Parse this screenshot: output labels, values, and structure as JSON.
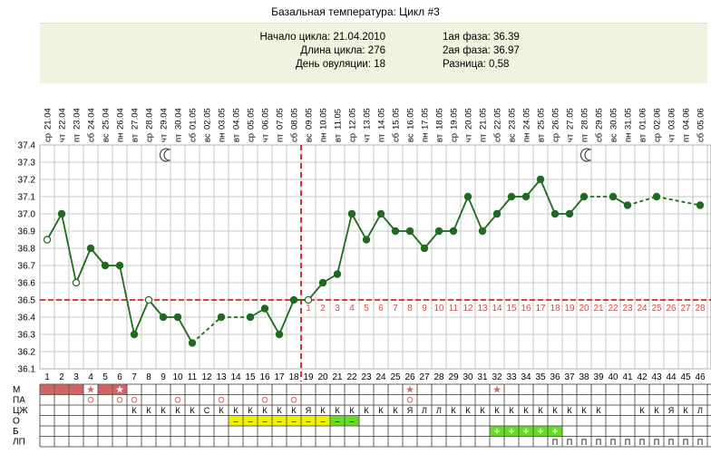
{
  "title": "Базальная температура: Цикл #3",
  "info": {
    "start": "Начало цикла: 21.04.2010",
    "length": "Длина цикла: 276",
    "ovulation": "День овуляции: 18",
    "phase1": "1ая фаза: 36.39",
    "phase2": "2ая фаза: 36.97",
    "diff": "Разница: 0,58"
  },
  "colors": {
    "line": "#1e6b1e",
    "grid": "#b8b8b8",
    "coverline": "#cc0000",
    "row_red": "#d46464",
    "row_yellow": "#f0f000",
    "row_green": "#66dd22",
    "phase2_numbers": "#d24a4a"
  },
  "chart_data": {
    "type": "line",
    "ylim": [
      36.1,
      37.4
    ],
    "yticks": [
      "36.1",
      "36.2",
      "36.3",
      "36.4",
      "36.5",
      "36.6",
      "36.7",
      "36.8",
      "36.9",
      "37.0",
      "37.1",
      "37.2",
      "37.3",
      "37.4"
    ],
    "days": [
      1,
      2,
      3,
      4,
      5,
      6,
      7,
      8,
      9,
      10,
      11,
      12,
      13,
      14,
      15,
      16,
      17,
      18,
      19,
      20,
      21,
      22,
      23,
      24,
      25,
      26,
      27,
      28,
      29,
      30,
      31,
      32,
      33,
      34,
      35,
      36,
      37,
      38,
      39,
      40,
      41,
      42,
      43,
      44,
      45,
      46
    ],
    "dates": [
      "21.04",
      "22.04",
      "23.04",
      "24.04",
      "25.04",
      "26.04",
      "27.04",
      "28.04",
      "29.04",
      "30.04",
      "01.05",
      "02.05",
      "03.05",
      "04.05",
      "05.05",
      "06.05",
      "07.05",
      "08.05",
      "09.05",
      "10.05",
      "11.05",
      "12.05",
      "13.05",
      "14.05",
      "15.05",
      "16.05",
      "17.05",
      "18.05",
      "19.05",
      "20.05",
      "21.05",
      "22.05",
      "23.05",
      "24.05",
      "25.05",
      "26.05",
      "27.05",
      "28.05",
      "29.05",
      "30.05",
      "31.05",
      "01.06",
      "02.06",
      "03.06",
      "04.06",
      "05.06"
    ],
    "weekdays": [
      "ср",
      "чт",
      "пт",
      "сб",
      "вс",
      "пн",
      "вт",
      "ср",
      "чт",
      "пт",
      "сб",
      "вс",
      "пн",
      "вт",
      "ср",
      "чт",
      "пт",
      "сб",
      "вс",
      "пн",
      "вт",
      "ср",
      "чт",
      "пт",
      "сб",
      "вс",
      "пн",
      "вт",
      "ср",
      "чт",
      "пт",
      "сб",
      "вс",
      "пн",
      "вт",
      "ср",
      "чт",
      "пт",
      "сб",
      "вс",
      "пн",
      "вт",
      "ср",
      "чт",
      "пт",
      "сб"
    ],
    "temps": [
      36.85,
      37.0,
      36.6,
      36.8,
      36.7,
      36.7,
      36.3,
      36.5,
      36.4,
      36.4,
      36.25,
      null,
      36.4,
      null,
      36.4,
      36.45,
      36.3,
      36.5,
      36.5,
      36.6,
      36.65,
      37.0,
      36.85,
      37.0,
      36.9,
      36.9,
      36.8,
      36.9,
      36.9,
      37.1,
      36.9,
      37.0,
      37.1,
      37.1,
      37.2,
      37.0,
      37.0,
      37.1,
      null,
      37.1,
      37.05,
      null,
      37.1,
      null,
      null,
      37.05
    ],
    "hollow_days": [
      1,
      3,
      8,
      19
    ],
    "dashed_segments": [
      [
        11,
        13
      ],
      [
        38,
        40
      ],
      [
        42,
        46
      ]
    ],
    "coverline": 36.5,
    "ovulation_day": 18,
    "phase2_labels": [
      "1",
      "2",
      "3",
      "4",
      "5",
      "6",
      "7",
      "8",
      "9",
      "10",
      "11",
      "12",
      "13",
      "14",
      "15",
      "16",
      "17",
      "18",
      "19",
      "20",
      "21",
      "22",
      "23",
      "24",
      "25",
      "26",
      "27",
      "28"
    ],
    "moon_days": [
      9,
      38
    ]
  },
  "rows": {
    "labels": [
      "М",
      "ПА",
      "ЦЖ",
      "О",
      "Б",
      "ЛП"
    ],
    "M": {
      "filled": [
        1,
        2,
        3,
        5,
        6
      ],
      "stars": [
        4,
        6,
        26,
        32
      ]
    },
    "PA": {
      "circles": [
        4,
        6,
        7,
        10,
        13,
        16,
        18,
        26
      ],
      "stars": []
    },
    "CZH": {
      "text": {
        "7": "К",
        "8": "К",
        "9": "К",
        "10": "К",
        "11": "К",
        "12": "С",
        "13": "К",
        "14": "К",
        "15": "К",
        "16": "К",
        "17": "К",
        "18": "К",
        "19": "Я",
        "20": "К",
        "21": "К",
        "22": "К",
        "23": "К",
        "24": "К",
        "25": "К",
        "26": "Я",
        "27": "Л",
        "28": "Л",
        "29": "К",
        "30": "К",
        "31": "К",
        "32": "К",
        "33": "К",
        "34": "К",
        "35": "К",
        "36": "К",
        "37": "К",
        "38": "К",
        "39": "К",
        "42": "К",
        "43": "К",
        "44": "Я",
        "45": "К",
        "46": "Л"
      }
    },
    "O": {
      "yellow": [
        14,
        15,
        16,
        17,
        18,
        19,
        20
      ],
      "green": [
        21,
        22
      ],
      "dash": "–"
    },
    "B": {
      "green": [
        32,
        33,
        34,
        35,
        36
      ],
      "plus": "+"
    },
    "LP": {
      "text": {
        "36": "П",
        "37": "П",
        "38": "П",
        "39": "П",
        "40": "П",
        "41": "П",
        "42": "П",
        "43": "П",
        "44": "П",
        "45": "П",
        "46": "П"
      }
    }
  }
}
